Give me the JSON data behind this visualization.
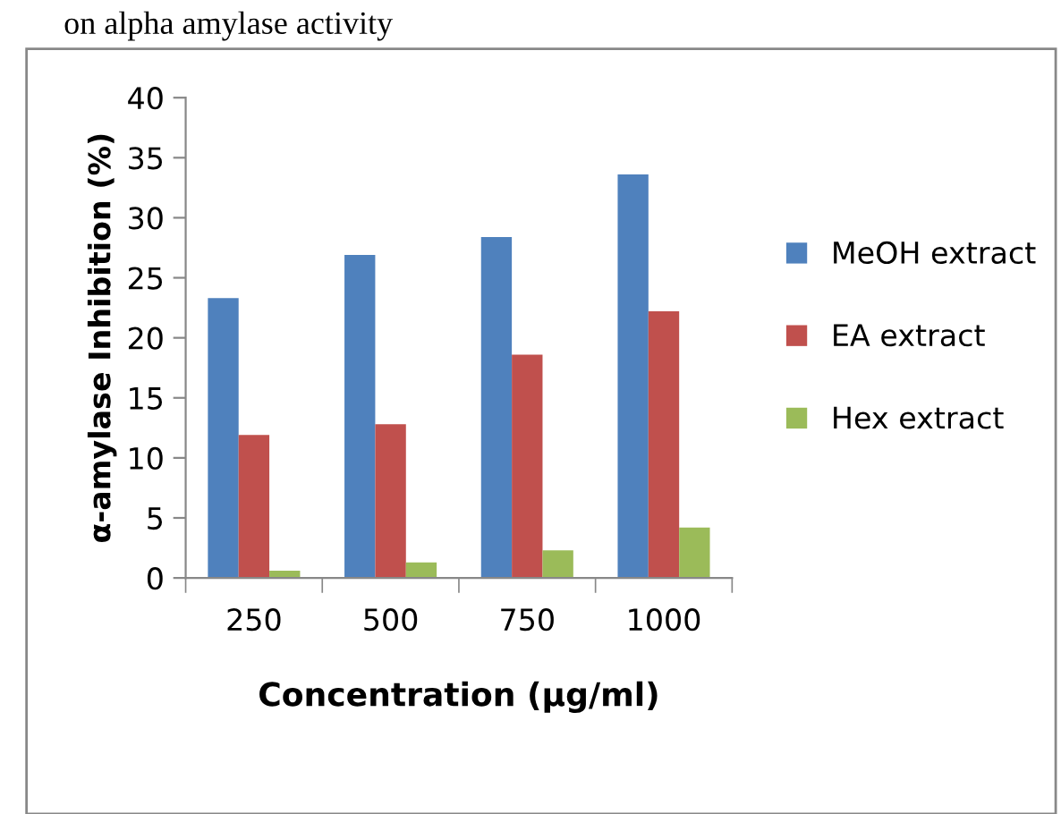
{
  "chart_data": {
    "type": "bar",
    "title": "on alpha amylase activity",
    "categories": [
      "250",
      "500",
      "750",
      "1000"
    ],
    "series": [
      {
        "name": "MeOH extract",
        "color": "#4f81bd",
        "values": [
          23.3,
          26.9,
          28.4,
          33.6
        ]
      },
      {
        "name": "EA extract",
        "color": "#c0504d",
        "values": [
          11.9,
          12.8,
          18.6,
          22.2
        ]
      },
      {
        "name": "Hex extract",
        "color": "#9bbb59",
        "values": [
          0.6,
          1.3,
          2.3,
          4.2
        ]
      }
    ],
    "xlabel": "Concentration (µg/ml)",
    "ylabel": "α-amylase Inhibition (%)",
    "ylim": [
      0,
      40
    ],
    "yticks": [
      0,
      5,
      10,
      15,
      20,
      25,
      30,
      35,
      40
    ],
    "grid": false,
    "legend": "right"
  }
}
